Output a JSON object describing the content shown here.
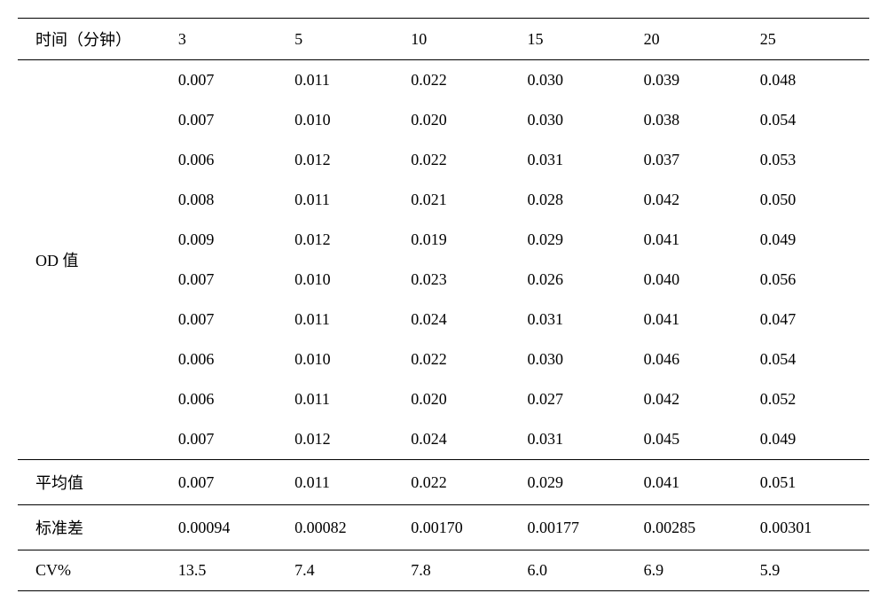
{
  "table": {
    "type": "table",
    "background_color": "#ffffff",
    "text_color": "#000000",
    "border_color": "#000000",
    "font_size": 18,
    "font_family": "SimSun",
    "header": {
      "label": "时间（分钟）",
      "columns": [
        "3",
        "5",
        "10",
        "15",
        "20",
        "25"
      ]
    },
    "od_section": {
      "label": "OD 值",
      "rows": [
        [
          "0.007",
          "0.011",
          "0.022",
          "0.030",
          "0.039",
          "0.048"
        ],
        [
          "0.007",
          "0.010",
          "0.020",
          "0.030",
          "0.038",
          "0.054"
        ],
        [
          "0.006",
          "0.012",
          "0.022",
          "0.031",
          "0.037",
          "0.053"
        ],
        [
          "0.008",
          "0.011",
          "0.021",
          "0.028",
          "0.042",
          "0.050"
        ],
        [
          "0.009",
          "0.012",
          "0.019",
          "0.029",
          "0.041",
          "0.049"
        ],
        [
          "0.007",
          "0.010",
          "0.023",
          "0.026",
          "0.040",
          "0.056"
        ],
        [
          "0.007",
          "0.011",
          "0.024",
          "0.031",
          "0.041",
          "0.047"
        ],
        [
          "0.006",
          "0.010",
          "0.022",
          "0.030",
          "0.046",
          "0.054"
        ],
        [
          "0.006",
          "0.011",
          "0.020",
          "0.027",
          "0.042",
          "0.052"
        ],
        [
          "0.007",
          "0.012",
          "0.024",
          "0.031",
          "0.045",
          "0.049"
        ]
      ]
    },
    "summary": {
      "mean": {
        "label": "平均值",
        "values": [
          "0.007",
          "0.011",
          "0.022",
          "0.029",
          "0.041",
          "0.051"
        ]
      },
      "std": {
        "label": "标准差",
        "values": [
          "0.00094",
          "0.00082",
          "0.00170",
          "0.00177",
          "0.00285",
          "0.00301"
        ]
      },
      "cv": {
        "label": "CV%",
        "values": [
          "13.5",
          "7.4",
          "7.8",
          "6.0",
          "6.9",
          "5.9"
        ]
      }
    }
  }
}
